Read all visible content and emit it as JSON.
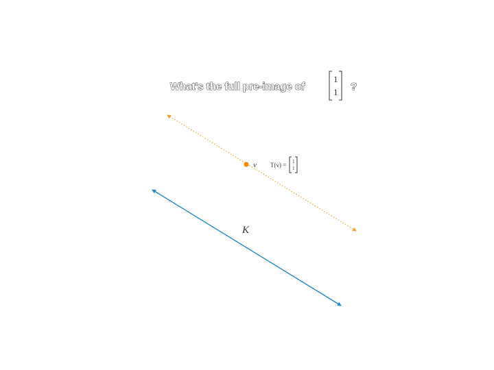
{
  "question": {
    "text": "What's the full pre-image of",
    "vector": [
      "1",
      "1"
    ],
    "suffix": "?"
  },
  "point": {
    "label": "v",
    "map_lhs": "T(v) =",
    "map_vector": [
      "1",
      "1"
    ],
    "color": "#f28c00"
  },
  "preimage_line": {
    "style": "dotted",
    "color": "#f0a030"
  },
  "kernel_line": {
    "label": "K",
    "color": "#1f8ac6"
  }
}
